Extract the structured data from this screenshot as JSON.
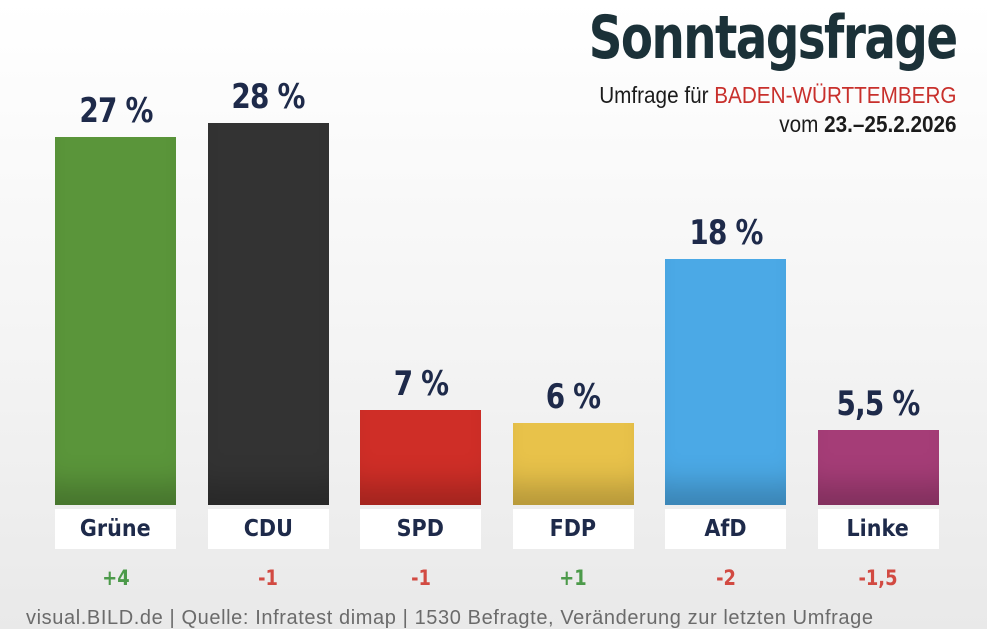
{
  "header": {
    "title": "Sonntagsfrage",
    "subtitle_prefix": "Umfrage für ",
    "region": "BADEN-WÜRTTEMBERG",
    "date_prefix": "vom ",
    "dates": "23.–25.2.2026"
  },
  "footer": {
    "text": "visual.BILD.de | Quelle: Infratest dimap | 1530 Befragte, Veränderung zur letzten Umfrage"
  },
  "colors": {
    "positive": "#4c9a4a",
    "negative": "#d24a42"
  },
  "chart_data": {
    "type": "bar",
    "title": "Sonntagsfrage",
    "categories": [
      "Grüne",
      "CDU",
      "SPD",
      "FDP",
      "AfD",
      "Linke"
    ],
    "values": [
      27,
      28,
      7,
      6,
      18,
      5.5
    ],
    "value_labels": [
      "27 %",
      "28 %",
      "7 %",
      "6 %",
      "18 %",
      "5,5 %"
    ],
    "changes": [
      "+4",
      "-1",
      "-1",
      "+1",
      "-2",
      "-1,5"
    ],
    "change_signs": [
      "positive",
      "negative",
      "negative",
      "positive",
      "negative",
      "negative"
    ],
    "bar_colors": [
      "#5a953a",
      "#333333",
      "#cf2e27",
      "#e8c24a",
      "#4ba9e6",
      "#a53d77"
    ],
    "xlabel": "",
    "ylabel": "",
    "ylim": [
      0,
      28
    ],
    "grid": false
  }
}
